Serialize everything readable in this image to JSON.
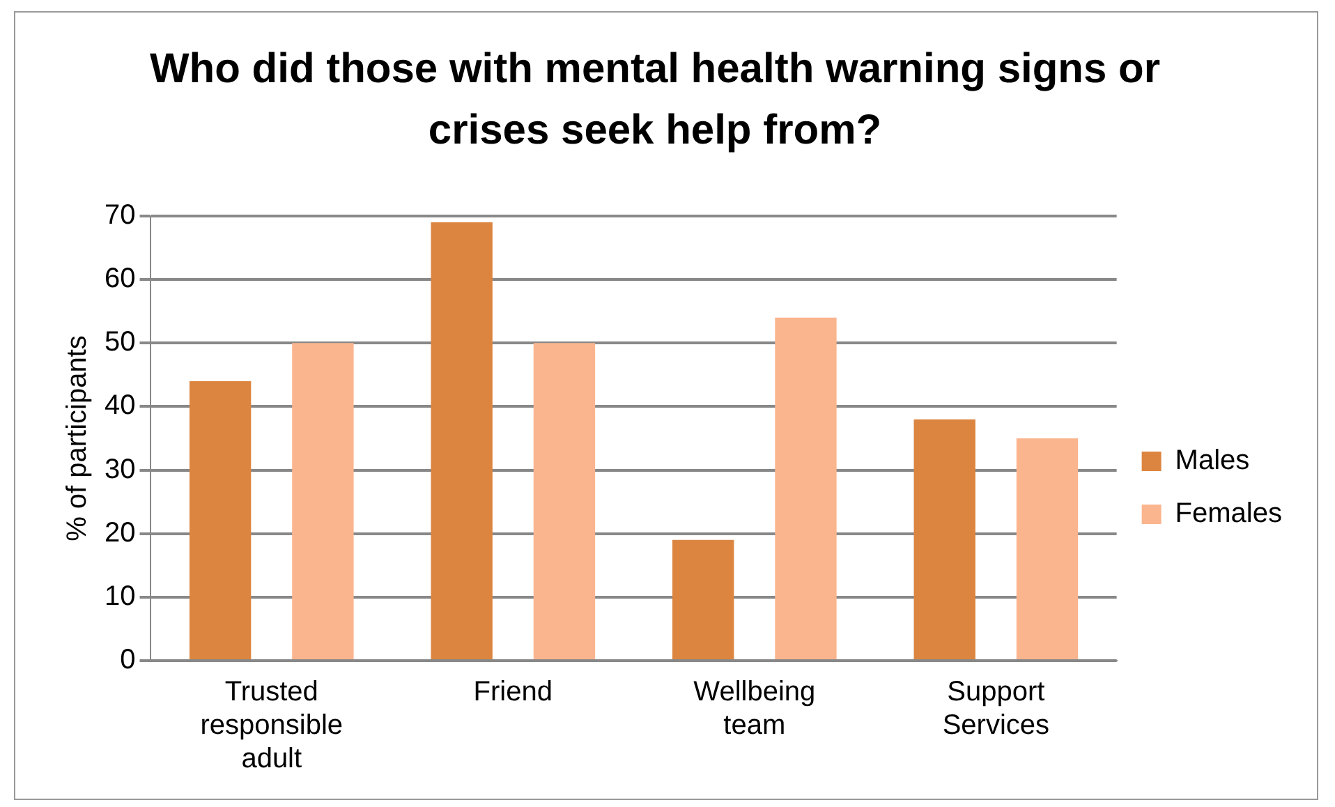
{
  "chart_data": {
    "type": "bar",
    "title": "Who did those with mental health warning signs or crises seek help from?",
    "ylabel": "% of participants",
    "categories": [
      "Trusted responsible adult",
      "Friend",
      "Wellbeing team",
      "Support Services"
    ],
    "series": [
      {
        "name": "Males",
        "color": "#dc8540",
        "values": [
          44,
          69,
          19,
          38
        ]
      },
      {
        "name": "Females",
        "color": "#fbb58e",
        "values": [
          50,
          50,
          54,
          35
        ]
      }
    ],
    "ylim": [
      0,
      70
    ],
    "yticks": [
      0,
      10,
      20,
      30,
      40,
      50,
      60,
      70
    ],
    "grid": "y",
    "legend": "right"
  }
}
